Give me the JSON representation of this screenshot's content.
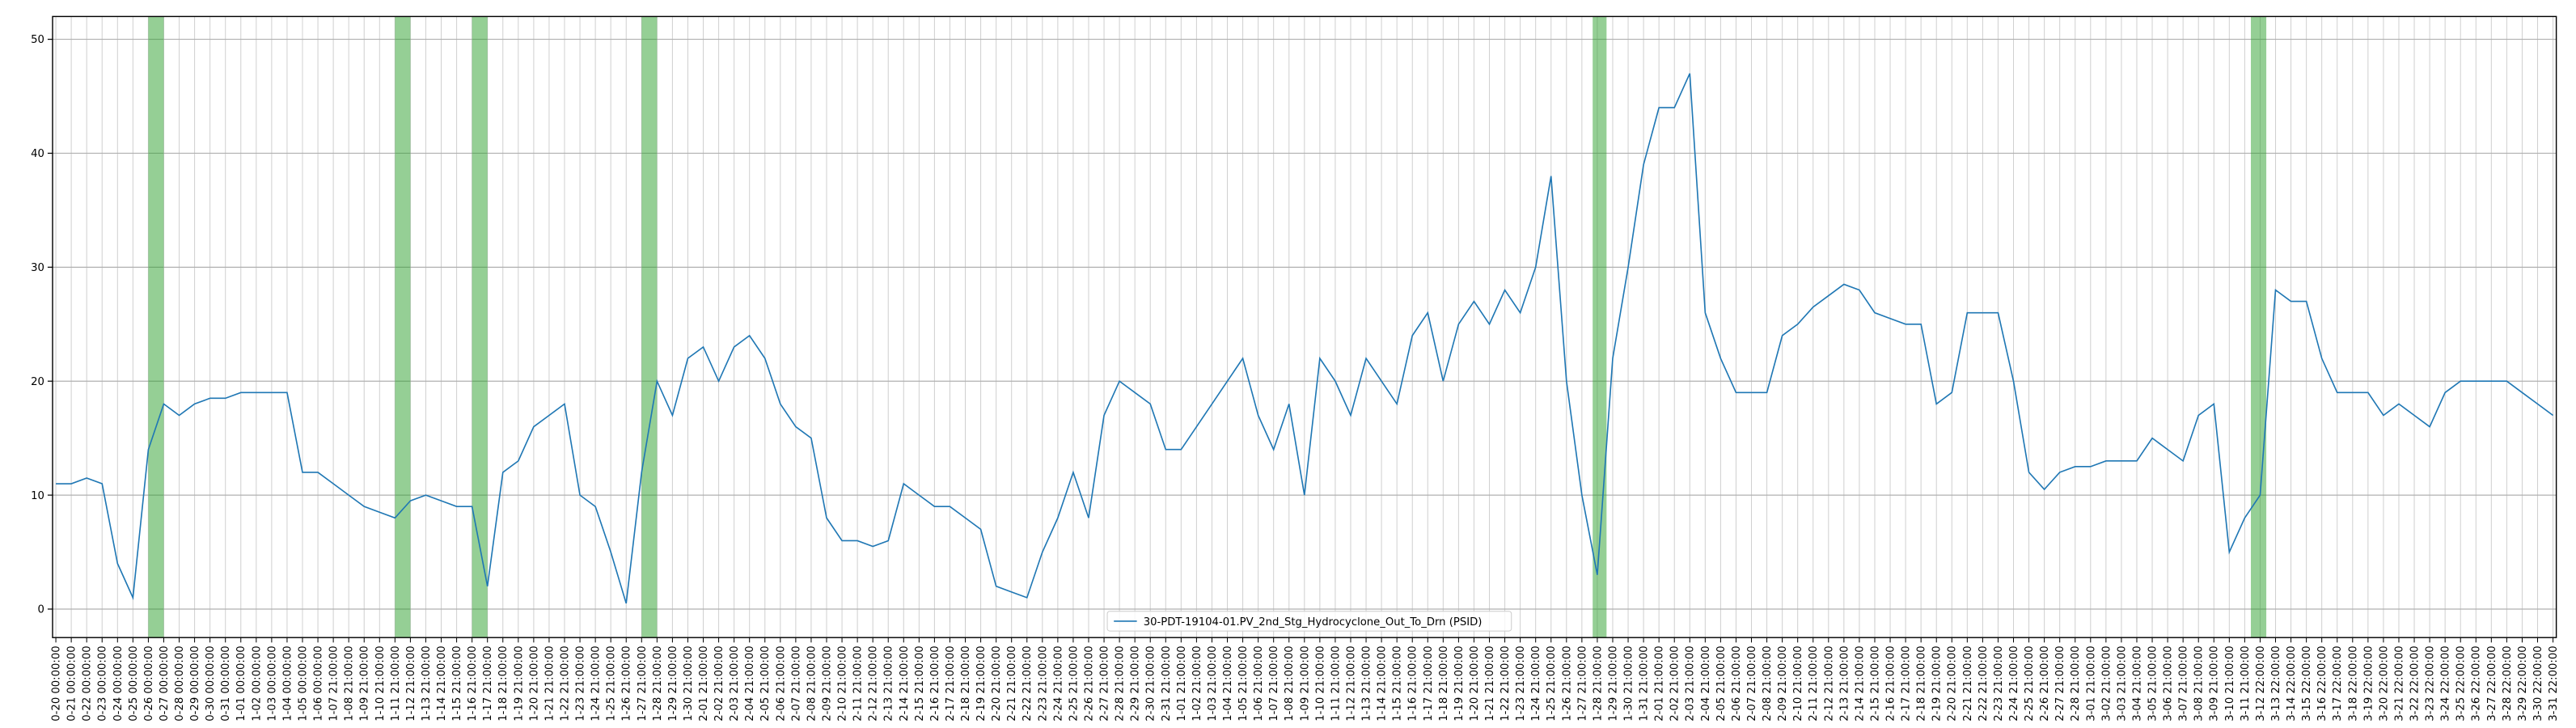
{
  "chart_data": {
    "type": "line",
    "categories": [
      "0-20 00:00:00",
      "0-21 00:00:00",
      "0-22 00:00:00",
      "0-23 00:00:00",
      "0-24 00:00:00",
      "0-25 00:00:00",
      "0-26 00:00:00",
      "0-27 00:00:00",
      "0-28 00:00:00",
      "0-29 00:00:00",
      "0-30 00:00:00",
      "0-31 00:00:00",
      "1-01 00:00:00",
      "1-02 00:00:00",
      "1-03 00:00:00",
      "1-04 00:00:00",
      "1-05 00:00:00",
      "1-06 00:00:00",
      "1-07 21:00:00",
      "1-08 21:00:00",
      "1-09 21:00:00",
      "1-10 21:00:00",
      "1-11 21:00:00",
      "1-12 21:00:00",
      "1-13 21:00:00",
      "1-14 21:00:00",
      "1-15 21:00:00",
      "1-16 21:00:00",
      "1-17 21:00:00",
      "1-18 21:00:00",
      "1-19 21:00:00",
      "1-20 21:00:00",
      "1-21 21:00:00",
      "1-22 21:00:00",
      "1-23 21:00:00",
      "1-24 21:00:00",
      "1-25 21:00:00",
      "1-26 21:00:00",
      "1-27 21:00:00",
      "1-28 21:00:00",
      "1-29 21:00:00",
      "1-30 21:00:00",
      "2-01 21:00:00",
      "2-02 21:00:00",
      "2-03 21:00:00",
      "2-04 21:00:00",
      "2-05 21:00:00",
      "2-06 21:00:00",
      "2-07 21:00:00",
      "2-08 21:00:00",
      "2-09 21:00:00",
      "2-10 21:00:00",
      "2-11 21:00:00",
      "2-12 21:00:00",
      "2-13 21:00:00",
      "2-14 21:00:00",
      "2-15 21:00:00",
      "2-16 21:00:00",
      "2-17 21:00:00",
      "2-18 21:00:00",
      "2-19 21:00:00",
      "2-20 21:00:00",
      "2-21 21:00:00",
      "2-22 21:00:00",
      "2-23 21:00:00",
      "2-24 21:00:00",
      "2-25 21:00:00",
      "2-26 21:00:00",
      "2-27 21:00:00",
      "2-28 21:00:00",
      "2-29 21:00:00",
      "2-30 21:00:00",
      "2-31 21:00:00",
      "1-01 21:00:00",
      "1-02 21:00:00",
      "1-03 21:00:00",
      "1-04 21:00:00",
      "1-05 21:00:00",
      "1-06 21:00:00",
      "1-07 21:00:00",
      "1-08 21:00:00",
      "1-09 21:00:00",
      "1-10 21:00:00",
      "1-11 21:00:00",
      "1-12 21:00:00",
      "1-13 21:00:00",
      "1-14 21:00:00",
      "1-15 21:00:00",
      "1-16 21:00:00",
      "1-17 21:00:00",
      "1-18 21:00:00",
      "1-19 21:00:00",
      "1-20 21:00:00",
      "1-21 21:00:00",
      "1-22 21:00:00",
      "1-23 21:00:00",
      "1-24 21:00:00",
      "1-25 21:00:00",
      "1-26 21:00:00",
      "1-27 21:00:00",
      "1-28 21:00:00",
      "1-29 21:00:00",
      "1-30 21:00:00",
      "1-31 21:00:00",
      "2-01 21:00:00",
      "2-02 21:00:00",
      "2-03 21:00:00",
      "2-04 21:00:00",
      "2-05 21:00:00",
      "2-06 21:00:00",
      "2-07 21:00:00",
      "2-08 21:00:00",
      "2-09 21:00:00",
      "2-10 21:00:00",
      "2-11 21:00:00",
      "2-12 21:00:00",
      "2-13 21:00:00",
      "2-14 21:00:00",
      "2-15 21:00:00",
      "2-16 21:00:00",
      "2-17 21:00:00",
      "2-18 21:00:00",
      "2-19 21:00:00",
      "2-20 21:00:00",
      "2-21 21:00:00",
      "2-22 21:00:00",
      "2-23 21:00:00",
      "2-24 21:00:00",
      "2-25 21:00:00",
      "2-26 21:00:00",
      "2-27 21:00:00",
      "2-28 21:00:00",
      "3-01 21:00:00",
      "3-02 21:00:00",
      "3-03 21:00:00",
      "3-04 21:00:00",
      "3-05 21:00:00",
      "3-06 21:00:00",
      "3-07 21:00:00",
      "3-08 21:00:00",
      "3-09 21:00:00",
      "3-10 21:00:00",
      "3-11 21:00:00",
      "3-12 22:00:00",
      "3-13 22:00:00",
      "3-14 22:00:00",
      "3-15 22:00:00",
      "3-16 22:00:00",
      "3-17 22:00:00",
      "3-18 22:00:00",
      "3-19 22:00:00",
      "3-20 22:00:00",
      "3-21 22:00:00",
      "3-22 22:00:00",
      "3-23 22:00:00",
      "3-24 22:00:00",
      "3-25 22:00:00",
      "3-26 22:00:00",
      "3-27 22:00:00",
      "3-28 22:00:00",
      "3-29 22:00:00",
      "3-30 22:00:00",
      "3-31 22:00:00"
    ],
    "series": [
      {
        "name": "30-PDT-19104-01.PV_2nd_Stg_Hydrocyclone_Out_To_Drn (PSID)",
        "color": "#1f77b4",
        "values": [
          11,
          11,
          11.5,
          11,
          4,
          1,
          14,
          18,
          17,
          18,
          18.5,
          18.5,
          19,
          19,
          19,
          19,
          12,
          12,
          11,
          10,
          9,
          8.5,
          8,
          9.5,
          10,
          9.5,
          9,
          9,
          2,
          12,
          13,
          16,
          17,
          18,
          10,
          9,
          5,
          0.5,
          12,
          20,
          17,
          22,
          23,
          20,
          23,
          24,
          22,
          18,
          16,
          15,
          8,
          6,
          6,
          5.5,
          6,
          11,
          10,
          9,
          9,
          8,
          7,
          2,
          1.5,
          1,
          5,
          8,
          12,
          8,
          17,
          20,
          19,
          18,
          14,
          14,
          16,
          18,
          20,
          22,
          17,
          14,
          18,
          10,
          22,
          20,
          17,
          22,
          20,
          18,
          24,
          26,
          20,
          25,
          27,
          25,
          28,
          26,
          30,
          38,
          20,
          10,
          3,
          22,
          30,
          39,
          44,
          44,
          47,
          26,
          22,
          19,
          19,
          19,
          24,
          25,
          26.5,
          27.5,
          28.5,
          28,
          26,
          25.5,
          25,
          25,
          18,
          19,
          26,
          26,
          26,
          20,
          12,
          10.5,
          12,
          12.5,
          12.5,
          13,
          13,
          13,
          15,
          14,
          13,
          17,
          18,
          5,
          8,
          10,
          28,
          27,
          27,
          22,
          19,
          19,
          19,
          17,
          18,
          17,
          16,
          19,
          20,
          20,
          20,
          20,
          19,
          18,
          17
        ]
      }
    ],
    "highlight_spans": [
      [
        6,
        7
      ],
      [
        22,
        23
      ],
      [
        27,
        28
      ],
      [
        38,
        39
      ],
      [
        99.7,
        100.6
      ],
      [
        142.4,
        143.4
      ]
    ],
    "highlight_color": "#2ca02c",
    "ylim": [
      -2.5,
      52
    ],
    "yticks": [
      0,
      10,
      20,
      30,
      40,
      50
    ],
    "grid": true,
    "legend": "lower center"
  }
}
